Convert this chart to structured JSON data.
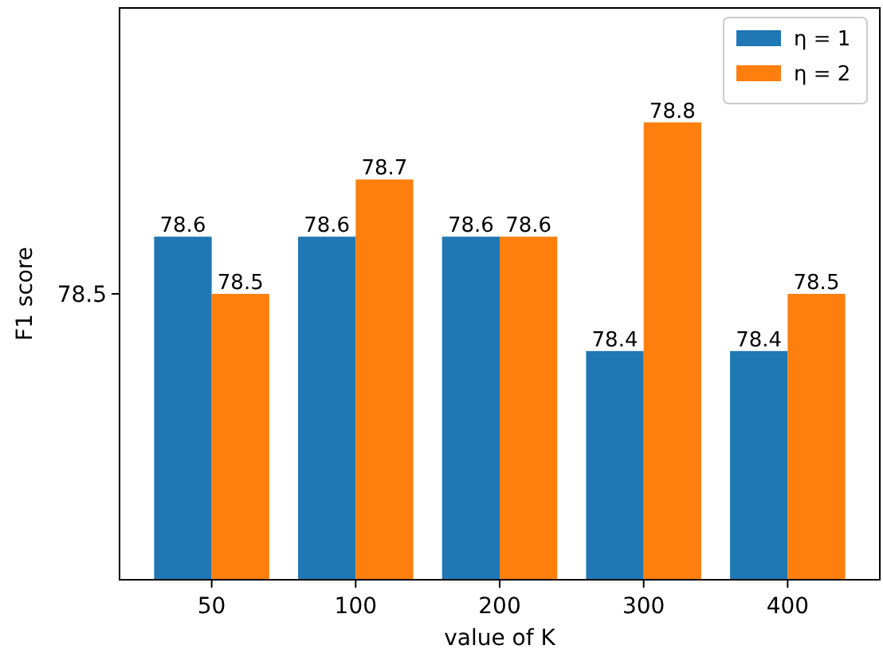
{
  "chart_data": {
    "type": "bar",
    "xlabel": "value of K",
    "ylabel": "F1 score",
    "categories": [
      "50",
      "100",
      "200",
      "300",
      "400"
    ],
    "series": [
      {
        "name": "η = 1",
        "color": "#1f77b4",
        "values": [
          78.6,
          78.6,
          78.6,
          78.4,
          78.4
        ]
      },
      {
        "name": "η = 2",
        "color": "#ff7f0e",
        "values": [
          78.5,
          78.7,
          78.6,
          78.8,
          78.5
        ]
      }
    ],
    "ylim": [
      78.0,
      79.0
    ],
    "annotations": [
      "78.5"
    ],
    "data_labels": true,
    "legend": "top right"
  }
}
